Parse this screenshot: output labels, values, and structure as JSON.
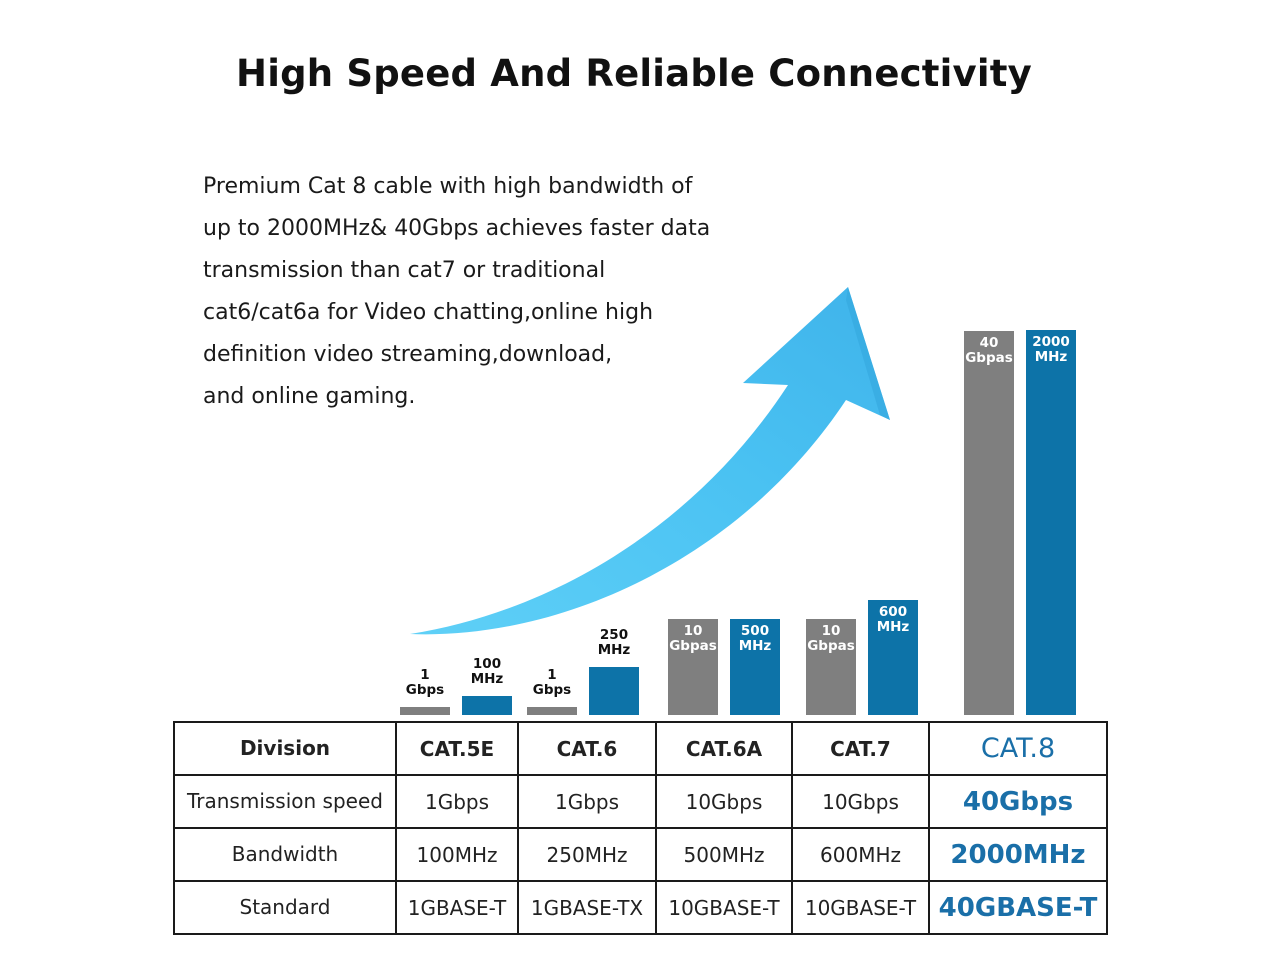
{
  "title": "High Speed And Reliable Connectivity",
  "description": [
    "Premium Cat 8 cable with high bandwidth of",
    "up to 2000MHz& 40Gbps achieves faster data",
    "transmission than cat7 or traditional",
    "cat6/cat6a for Video chatting,online high",
    "definition video streaming,download,",
    "and online gaming."
  ],
  "colors": {
    "speed": "#7f7f7f",
    "bandwidth": "#0d73a8",
    "highlight": "#1a6fa8",
    "arrow": "#4cc6f3"
  },
  "chart_data": {
    "type": "bar",
    "categories": [
      "CAT.5E",
      "CAT.6",
      "CAT.6A",
      "CAT.7",
      "CAT.8"
    ],
    "series": [
      {
        "values": [
          1,
          1,
          10,
          10,
          40
        ],
        "labels": [
          [
            "1",
            "Gbps"
          ],
          [
            "1",
            "Gbps"
          ],
          [
            "10",
            "Gbpas"
          ],
          [
            "10",
            "Gbpas"
          ],
          [
            "40",
            "Gbpas"
          ]
        ]
      },
      {
        "values": [
          100,
          250,
          500,
          600,
          2000
        ],
        "labels": [
          [
            "100",
            "MHz"
          ],
          [
            "250",
            "MHz"
          ],
          [
            "500",
            "MHz"
          ],
          [
            "600",
            "MHz"
          ],
          [
            "2000",
            "MHz"
          ]
        ]
      }
    ],
    "decoration": "upward-arrow"
  },
  "table": {
    "headers": [
      "Division",
      "CAT.5E",
      "CAT.6",
      "CAT.6A",
      "CAT.7",
      "CAT.8"
    ],
    "rows": [
      [
        "Transmission speed",
        "1Gbps",
        "1Gbps",
        "10Gbps",
        "10Gbps",
        "40Gbps"
      ],
      [
        "Bandwidth",
        "100MHz",
        "250MHz",
        "500MHz",
        "600MHz",
        "2000MHz"
      ],
      [
        "Standard",
        "1GBASE-T",
        "1GBASE-TX",
        "10GBASE-T",
        "10GBASE-T",
        "40GBASE-T"
      ]
    ]
  }
}
